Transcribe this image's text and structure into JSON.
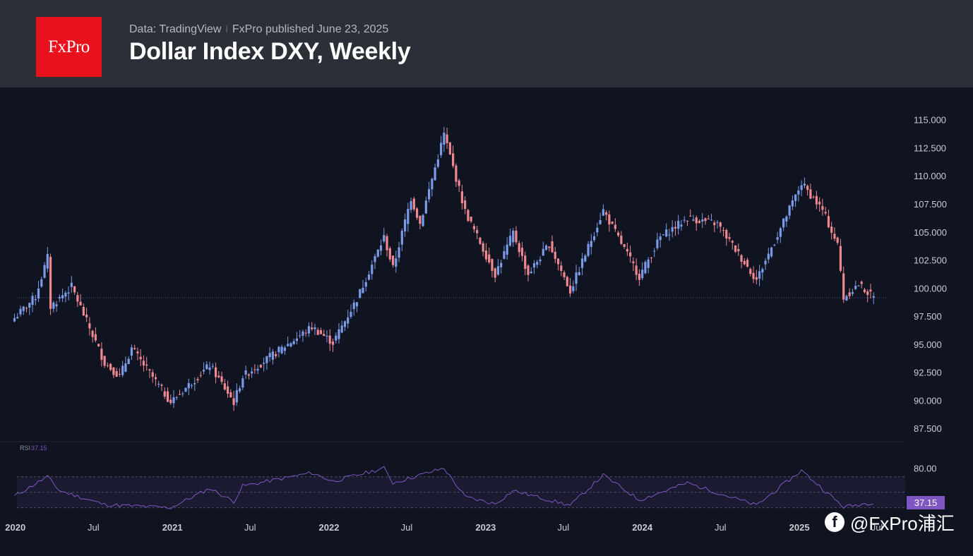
{
  "header": {
    "logo_text": "FxPro",
    "source": "Data: TradingView",
    "published": "FxPro published June 23, 2025",
    "title": "Dollar Index DXY, Weekly"
  },
  "watermark": {
    "icon": "facebook-icon",
    "text": "@FxPro浦汇"
  },
  "colors": {
    "up": "#7b9ae8",
    "down": "#f08891",
    "rsi": "#7e57c2",
    "background": "#0f1420",
    "header": "#2b2f38",
    "brand": "#e8111c"
  },
  "chart_data": [
    {
      "type": "candlestick",
      "title": "Dollar Index DXY, Weekly",
      "ylim": [
        86.5,
        115.8
      ],
      "y_ticks": [
        "115.000",
        "112.500",
        "110.000",
        "107.500",
        "105.000",
        "102.500",
        "100.000",
        "97.500",
        "95.000",
        "92.500",
        "90.000",
        "87.500"
      ],
      "x_ticks": [
        "2020",
        "Jul",
        "2021",
        "Jul",
        "2022",
        "Jul",
        "2023",
        "Jul",
        "2024",
        "Jul",
        "2025",
        "Jul"
      ],
      "last_value": 99.2,
      "series": [
        {
          "name": "DXY",
          "values": [
            {
              "date": "2019-12-30",
              "close": 97.4
            },
            {
              "date": "2020-02-17",
              "close": 99.3
            },
            {
              "date": "2020-03-16",
              "close": 102.8
            },
            {
              "date": "2020-03-23",
              "close": 98.4
            },
            {
              "date": "2020-05-11",
              "close": 100.2
            },
            {
              "date": "2020-07-27",
              "close": 93.4
            },
            {
              "date": "2020-08-31",
              "close": 92.2
            },
            {
              "date": "2020-09-28",
              "close": 94.7
            },
            {
              "date": "2020-12-28",
              "close": 89.9
            },
            {
              "date": "2021-03-29",
              "close": 93.2
            },
            {
              "date": "2021-05-24",
              "close": 89.9
            },
            {
              "date": "2021-06-14",
              "close": 92.2
            },
            {
              "date": "2021-11-22",
              "close": 96.6
            },
            {
              "date": "2022-01-10",
              "close": 95.2
            },
            {
              "date": "2022-03-07",
              "close": 99.1
            },
            {
              "date": "2022-05-09",
              "close": 104.6
            },
            {
              "date": "2022-05-30",
              "close": 101.8
            },
            {
              "date": "2022-07-11",
              "close": 108.1
            },
            {
              "date": "2022-08-01",
              "close": 105.8
            },
            {
              "date": "2022-09-26",
              "close": 113.8
            },
            {
              "date": "2022-11-14",
              "close": 106.9
            },
            {
              "date": "2023-01-23",
              "close": 101.3
            },
            {
              "date": "2023-03-06",
              "close": 105.0
            },
            {
              "date": "2023-04-10",
              "close": 101.3
            },
            {
              "date": "2023-05-29",
              "close": 104.0
            },
            {
              "date": "2023-07-17",
              "close": 99.8
            },
            {
              "date": "2023-10-02",
              "close": 107.0
            },
            {
              "date": "2023-12-25",
              "close": 101.1
            },
            {
              "date": "2024-02-12",
              "close": 104.6
            },
            {
              "date": "2024-04-15",
              "close": 106.3
            },
            {
              "date": "2024-06-24",
              "close": 105.8
            },
            {
              "date": "2024-09-23",
              "close": 100.8
            },
            {
              "date": "2025-01-06",
              "close": 109.4
            },
            {
              "date": "2025-02-24",
              "close": 107.0
            },
            {
              "date": "2025-03-31",
              "close": 103.9
            },
            {
              "date": "2025-04-14",
              "close": 99.2
            },
            {
              "date": "2025-05-19",
              "close": 100.4
            },
            {
              "date": "2025-06-23",
              "close": 99.2
            }
          ]
        }
      ]
    },
    {
      "type": "line",
      "title": "RSI",
      "label": "RSI",
      "value_label": "37.15",
      "last_value": 37.15,
      "ylim": [
        26,
        86
      ],
      "band": [
        30,
        70
      ],
      "y_ticks": [
        "80.00"
      ],
      "series": [
        {
          "name": "RSI",
          "values": [
            {
              "date": "2019-12-30",
              "value": 45
            },
            {
              "date": "2020-03-16",
              "value": 70
            },
            {
              "date": "2020-04-13",
              "value": 52
            },
            {
              "date": "2020-07-27",
              "value": 34
            },
            {
              "date": "2020-12-28",
              "value": 30
            },
            {
              "date": "2021-03-29",
              "value": 55
            },
            {
              "date": "2021-05-24",
              "value": 38
            },
            {
              "date": "2021-06-14",
              "value": 58
            },
            {
              "date": "2021-11-22",
              "value": 75
            },
            {
              "date": "2022-01-10",
              "value": 64
            },
            {
              "date": "2022-05-09",
              "value": 81
            },
            {
              "date": "2022-05-30",
              "value": 62
            },
            {
              "date": "2022-09-26",
              "value": 81
            },
            {
              "date": "2022-11-14",
              "value": 44
            },
            {
              "date": "2023-01-23",
              "value": 35
            },
            {
              "date": "2023-03-06",
              "value": 52
            },
            {
              "date": "2023-07-17",
              "value": 33
            },
            {
              "date": "2023-10-02",
              "value": 72
            },
            {
              "date": "2023-12-25",
              "value": 40
            },
            {
              "date": "2024-04-15",
              "value": 62
            },
            {
              "date": "2024-09-23",
              "value": 33
            },
            {
              "date": "2025-01-06",
              "value": 78
            },
            {
              "date": "2025-04-14",
              "value": 31
            },
            {
              "date": "2025-06-23",
              "value": 37.15
            }
          ]
        }
      ]
    }
  ]
}
